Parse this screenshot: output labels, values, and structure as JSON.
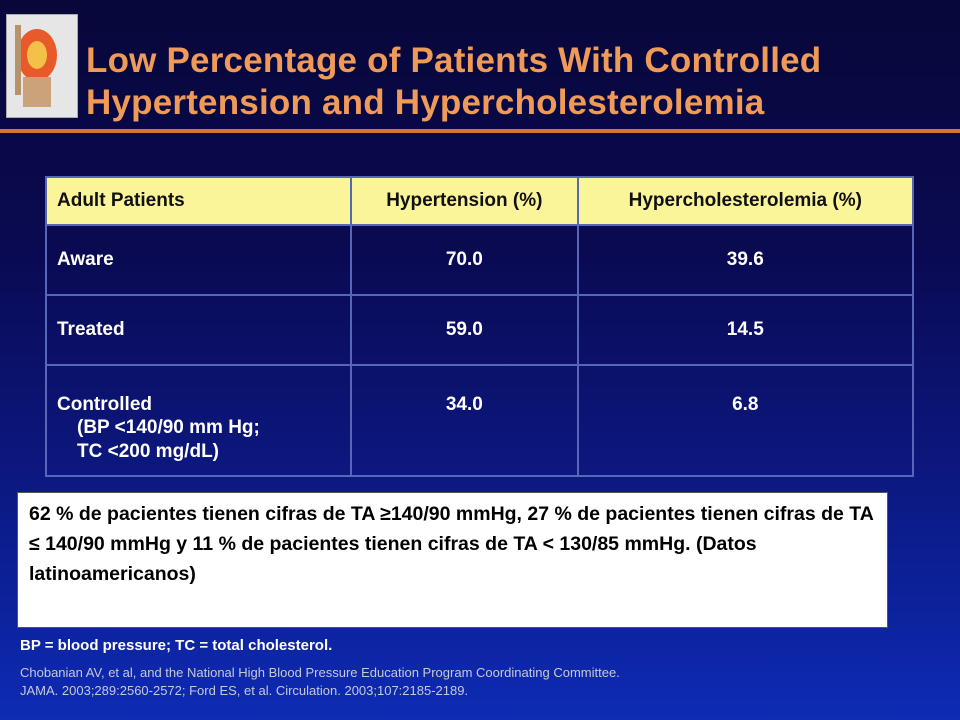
{
  "slide": {
    "title_line1": "Low Percentage of Patients With Controlled",
    "title_line2": "Hypertension and Hypercholesterolemia"
  },
  "table": {
    "headers": [
      "Adult Patients",
      "Hypertension (%)",
      "Hypercholesterolemia (%)"
    ],
    "rows": [
      {
        "label": "Aware",
        "hypertension": "70.0",
        "hypercholesterolemia": "39.6"
      },
      {
        "label": "Treated",
        "hypertension": "59.0",
        "hypercholesterolemia": "14.5"
      },
      {
        "label": "Controlled",
        "sub1": "(BP <140/90 mm Hg;",
        "sub2": "TC <200 mg/dL)",
        "hypertension": "34.0",
        "hypercholesterolemia": "6.8"
      }
    ]
  },
  "note": {
    "text": "62 % de pacientes tienen cifras de TA ≥140/90 mmHg, 27 % de pacientes tienen cifras de TA ≤ 140/90 mmHg y  11 % de pacientes tienen cifras de TA < 130/85 mmHg. (Datos latinoamericanos)"
  },
  "footer": {
    "abbreviations": "BP = blood pressure; TC = total cholesterol.",
    "reference_line1": "Chobanian AV, et al, and the National High Blood Pressure Education Program Coordinating Committee.",
    "reference_line2": "JAMA. 2003;289:2560-2572; Ford ES, et al. Circulation. 2003;107:2185-2189."
  },
  "colors": {
    "title": "#f09a58",
    "rule": "#d9733a",
    "header_bg": "#fbf59a",
    "grid": "#5866b8"
  }
}
